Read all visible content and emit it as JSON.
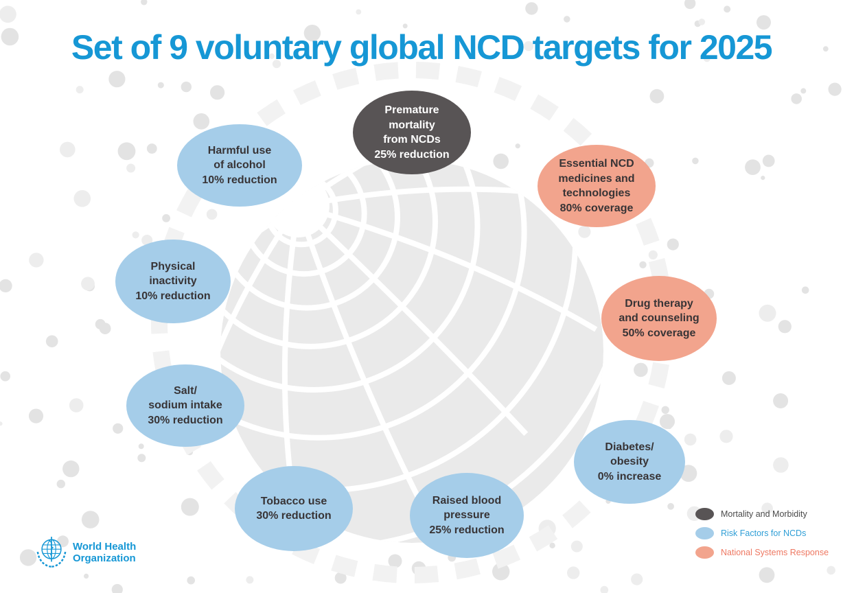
{
  "title": "Set of 9 voluntary global NCD targets for 2025",
  "colors": {
    "title_blue": "#1697d5",
    "category_fill": {
      "mortality": "#585455",
      "risk": "#a5cde9",
      "systems": "#f2a48d"
    },
    "legend_text": {
      "mortality": "#4a4a4a",
      "risk": "#2e9ed6",
      "systems": "#ee7862"
    },
    "globe_gray": "#eaeaea",
    "dot_gray": "#e3e3e3"
  },
  "bubbles": [
    {
      "id": "premature-mortality",
      "category": "mortality",
      "lines": [
        "Premature",
        "mortality",
        "from NCDs",
        "25% reduction"
      ]
    },
    {
      "id": "harmful-alcohol",
      "category": "risk",
      "lines": [
        "Harmful use",
        "of alcohol",
        "10% reduction"
      ]
    },
    {
      "id": "essential-medicines",
      "category": "systems",
      "lines": [
        "Essential NCD",
        "medicines and",
        "technologies",
        "80% coverage"
      ]
    },
    {
      "id": "physical-inactivity",
      "category": "risk",
      "lines": [
        "Physical",
        "inactivity",
        "10% reduction"
      ]
    },
    {
      "id": "drug-therapy",
      "category": "systems",
      "lines": [
        "Drug therapy",
        "and counseling",
        "50% coverage"
      ]
    },
    {
      "id": "salt-sodium",
      "category": "risk",
      "lines": [
        "Salt/",
        "sodium intake",
        "30% reduction"
      ]
    },
    {
      "id": "diabetes-obesity",
      "category": "risk",
      "lines": [
        "Diabetes/",
        "obesity",
        "0% increase"
      ]
    },
    {
      "id": "tobacco-use",
      "category": "risk",
      "lines": [
        "Tobacco use",
        "30% reduction"
      ]
    },
    {
      "id": "raised-blood-pressure",
      "category": "risk",
      "lines": [
        "Raised blood",
        "pressure",
        "25% reduction"
      ]
    }
  ],
  "legend": [
    {
      "category": "mortality",
      "label": "Mortality and Morbidity"
    },
    {
      "category": "risk",
      "label": "Risk Factors for NCDs"
    },
    {
      "category": "systems",
      "label": "National Systems Response"
    }
  ],
  "footer": {
    "org_line1": "World Health",
    "org_line2": "Organization"
  }
}
